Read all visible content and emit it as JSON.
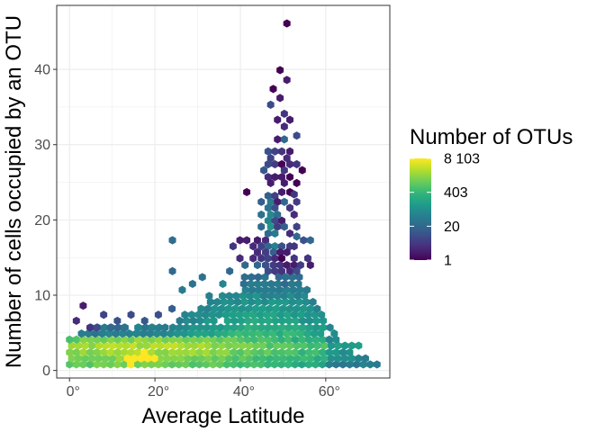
{
  "chart_data": {
    "type": "hexbin",
    "title": "",
    "xlabel": "Average Latitude",
    "ylabel": "Number of cells occupied by an OTU",
    "xlim": [
      -3,
      75
    ],
    "ylim": [
      -1,
      48.5
    ],
    "x_ticks": [
      0,
      20,
      40,
      60
    ],
    "x_tick_labels": [
      "0°",
      "20°",
      "40°",
      "60°"
    ],
    "y_ticks": [
      0,
      10,
      20,
      30,
      40
    ],
    "y_tick_labels": [
      "0",
      "10",
      "20",
      "30",
      "40"
    ],
    "grid": true,
    "legend": {
      "title": "Number of OTUs",
      "placement": "right",
      "scale": "log",
      "breaks": [
        8103,
        403,
        20,
        1
      ],
      "labels": [
        "8 103",
        "403",
        "20",
        "1"
      ]
    },
    "colors": {
      "viridis": [
        "#440154",
        "#482878",
        "#3e4989",
        "#31688e",
        "#26828e",
        "#1f9e89",
        "#35b779",
        "#6ece58",
        "#b5de2b",
        "#fde725"
      ],
      "panel_border": "#333333",
      "grid": "#ebebeb"
    },
    "bins": [
      [
        50.9,
        46.1,
        1
      ],
      [
        49.3,
        39.9,
        1
      ],
      [
        47.7,
        37.4,
        1
      ],
      [
        49.3,
        36.2,
        2
      ],
      [
        50.9,
        38.6,
        2
      ],
      [
        47.1,
        35.3,
        8
      ],
      [
        50.3,
        34.1,
        4
      ],
      [
        48.7,
        33.3,
        2
      ],
      [
        51.6,
        33.3,
        2
      ],
      [
        50.3,
        32.4,
        3
      ],
      [
        53.2,
        31.2,
        8
      ],
      [
        48.7,
        30.7,
        2
      ],
      [
        50.3,
        30.7,
        20
      ],
      [
        46.5,
        29.1,
        10
      ],
      [
        48.1,
        29.1,
        6
      ],
      [
        49.7,
        29.1,
        4
      ],
      [
        51.6,
        29.1,
        2
      ],
      [
        47.1,
        28.2,
        6
      ],
      [
        50.9,
        28.2,
        3
      ],
      [
        46.5,
        27.4,
        8
      ],
      [
        48.1,
        27.4,
        5
      ],
      [
        49.7,
        27.4,
        1
      ],
      [
        51.6,
        27.4,
        3
      ],
      [
        53.2,
        27.4,
        4
      ],
      [
        45.5,
        26.6,
        12
      ],
      [
        50.3,
        26.6,
        4
      ],
      [
        54.5,
        26.6,
        1
      ],
      [
        46.5,
        25.7,
        3
      ],
      [
        48.1,
        25.7,
        2
      ],
      [
        49.7,
        25.7,
        2
      ],
      [
        51.6,
        25.7,
        1
      ],
      [
        47.1,
        24.9,
        2
      ],
      [
        50.3,
        24.9,
        2
      ],
      [
        53.2,
        24.9,
        1
      ],
      [
        41.5,
        23.7,
        1
      ],
      [
        49.7,
        23.7,
        2
      ],
      [
        51.6,
        23.7,
        1
      ],
      [
        52.6,
        23.4,
        4
      ],
      [
        46.5,
        23.2,
        15
      ],
      [
        48.1,
        23.2,
        6
      ],
      [
        44.9,
        22.4,
        15
      ],
      [
        47.1,
        22.4,
        40
      ],
      [
        48.7,
        22.4,
        2
      ],
      [
        50.3,
        22.4,
        20
      ],
      [
        53.2,
        22.4,
        5
      ],
      [
        46.5,
        21.6,
        30
      ],
      [
        48.1,
        21.6,
        10
      ],
      [
        51.6,
        21.6,
        4
      ],
      [
        44.9,
        20.7,
        30
      ],
      [
        47.1,
        20.7,
        70
      ],
      [
        48.7,
        20.7,
        25
      ],
      [
        52.6,
        20.7,
        3
      ],
      [
        46.5,
        19.9,
        60
      ],
      [
        48.1,
        19.9,
        8
      ],
      [
        49.7,
        19.9,
        2
      ],
      [
        44.9,
        19.1,
        20
      ],
      [
        47.1,
        19.1,
        100
      ],
      [
        48.7,
        19.1,
        5
      ],
      [
        50.3,
        19.1,
        15
      ],
      [
        53.2,
        19.1,
        6
      ],
      [
        46.5,
        18.2,
        20
      ],
      [
        48.1,
        18.2,
        40
      ],
      [
        51.6,
        18.2,
        3
      ],
      [
        53.2,
        17.8,
        20
      ],
      [
        54.8,
        17.3,
        10
      ],
      [
        56.4,
        17.3,
        20
      ],
      [
        24.1,
        17.3,
        25
      ],
      [
        44.0,
        17.3,
        2
      ],
      [
        45.9,
        17.3,
        3
      ],
      [
        41.5,
        17.3,
        2
      ],
      [
        39.9,
        17.3,
        2
      ],
      [
        43.0,
        16.5,
        3
      ],
      [
        44.9,
        16.5,
        6
      ],
      [
        46.5,
        16.5,
        20
      ],
      [
        48.1,
        16.5,
        50
      ],
      [
        49.7,
        16.5,
        10
      ],
      [
        51.6,
        16.5,
        5
      ],
      [
        52.6,
        16.5,
        4
      ],
      [
        44.0,
        15.7,
        3
      ],
      [
        45.9,
        15.7,
        5
      ],
      [
        47.7,
        15.7,
        15
      ],
      [
        49.3,
        15.7,
        2
      ],
      [
        50.9,
        15.7,
        2
      ],
      [
        43.0,
        14.9,
        3
      ],
      [
        44.9,
        14.9,
        4
      ],
      [
        46.5,
        14.9,
        6
      ],
      [
        48.1,
        14.9,
        3
      ],
      [
        49.7,
        14.9,
        1
      ],
      [
        52.6,
        14.9,
        4
      ],
      [
        55.8,
        14.9,
        4
      ],
      [
        41.1,
        14.0,
        20
      ],
      [
        44.0,
        14.0,
        20
      ],
      [
        45.9,
        14.0,
        10
      ],
      [
        47.7,
        14.0,
        5
      ],
      [
        49.3,
        14.0,
        4
      ],
      [
        50.9,
        14.0,
        2
      ],
      [
        52.6,
        14.0,
        2
      ],
      [
        54.1,
        14.0,
        5
      ],
      [
        56.4,
        14.0,
        2
      ],
      [
        46.5,
        13.2,
        8
      ],
      [
        48.1,
        13.2,
        5
      ],
      [
        49.7,
        13.2,
        4
      ],
      [
        51.6,
        13.2,
        3
      ],
      [
        53.2,
        13.2,
        8
      ],
      [
        24.1,
        13.2,
        20
      ]
    ]
  }
}
